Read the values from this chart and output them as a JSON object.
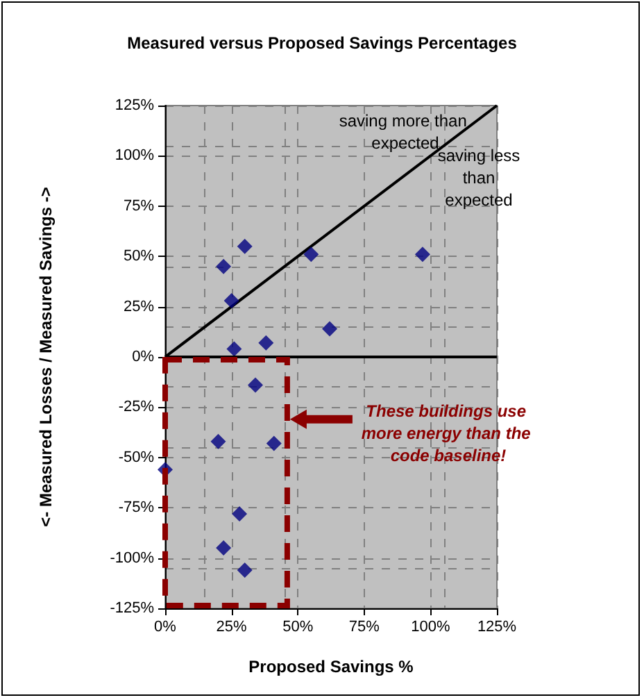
{
  "chart_data": {
    "type": "scatter",
    "title": "Measured versus Proposed Savings Percentages",
    "xlabel": "Proposed Savings %",
    "ylabel": "<- Measured Losses / Measured Savings ->",
    "xlim": [
      0,
      125
    ],
    "ylim": [
      -125,
      125
    ],
    "xticks": [
      {
        "value": 0,
        "label": "0%"
      },
      {
        "value": 25,
        "label": "25%"
      },
      {
        "value": 50,
        "label": "50%"
      },
      {
        "value": 75,
        "label": "75%"
      },
      {
        "value": 100,
        "label": "100%"
      },
      {
        "value": 125,
        "label": "125%"
      }
    ],
    "yticks": [
      {
        "value": -125,
        "label": "-125%"
      },
      {
        "value": -100,
        "label": "-100%"
      },
      {
        "value": -75,
        "label": "-75%"
      },
      {
        "value": -50,
        "label": "-50%"
      },
      {
        "value": -25,
        "label": "-25%"
      },
      {
        "value": 0,
        "label": "0%"
      },
      {
        "value": 25,
        "label": "25%"
      },
      {
        "value": 50,
        "label": "50%"
      },
      {
        "value": 75,
        "label": "75%"
      },
      {
        "value": 100,
        "label": "100%"
      },
      {
        "value": 125,
        "label": "125%"
      }
    ],
    "grid": true,
    "marker": "diamond",
    "series": [
      {
        "color": "#000080",
        "x": [
          22,
          30,
          25,
          26,
          38,
          55,
          62,
          97,
          34,
          20,
          41,
          0,
          28,
          22,
          30
        ],
        "values": [
          45,
          55,
          28,
          4,
          7,
          51,
          14,
          51,
          -14,
          -42,
          -43,
          -56,
          -78,
          -95,
          -106
        ]
      },
      {
        "type": "line",
        "color": "#000000",
        "x": [
          0,
          125
        ],
        "values": [
          0,
          125
        ],
        "marker": "none"
      }
    ],
    "ref_lines": [
      {
        "axis": "y",
        "value": 0,
        "color": "#000000"
      }
    ],
    "annotations": [
      "saving more than expected",
      "saving less than expected",
      "These buildings use more energy than the code baseline!"
    ]
  }
}
